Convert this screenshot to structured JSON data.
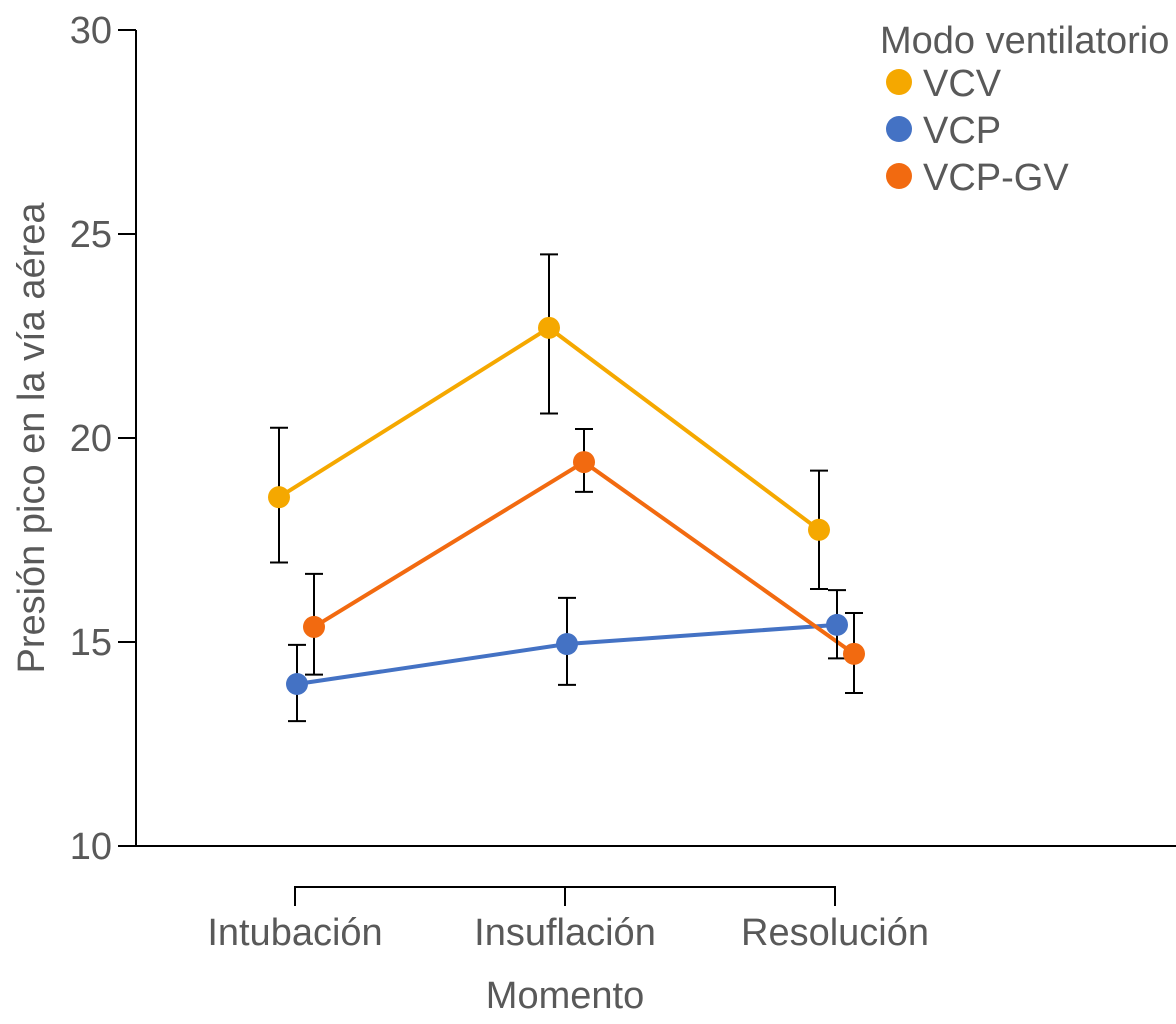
{
  "chart_data": {
    "type": "line",
    "title": "",
    "xlabel": "Momento",
    "ylabel": "Presión pico en la vía aérea",
    "categories": [
      "Intubación",
      "Insuflación",
      "Resolución"
    ],
    "ylim": [
      10,
      30
    ],
    "yticks": [
      "10",
      "15",
      "20",
      "25",
      "30"
    ],
    "grid": false,
    "legend": {
      "title": "Modo ventilatorio",
      "placement": "top-right"
    },
    "series": [
      {
        "name": "VCV",
        "color": "#F5A800",
        "values": [
          18.55,
          22.7,
          17.75
        ],
        "err_low": [
          16.95,
          20.6,
          16.3
        ],
        "err_high": [
          20.25,
          24.5,
          19.2
        ]
      },
      {
        "name": "VCP",
        "color": "#4472C4",
        "values": [
          13.97,
          14.95,
          15.42
        ],
        "err_low": [
          13.06,
          13.95,
          14.6
        ],
        "err_high": [
          14.93,
          16.08,
          16.27
        ]
      },
      {
        "name": "VCP-GV",
        "color": "#F26A10",
        "values": [
          15.37,
          19.41,
          14.71
        ],
        "err_low": [
          14.2,
          18.68,
          13.75
        ],
        "err_high": [
          16.67,
          20.22,
          15.71
        ]
      }
    ]
  }
}
